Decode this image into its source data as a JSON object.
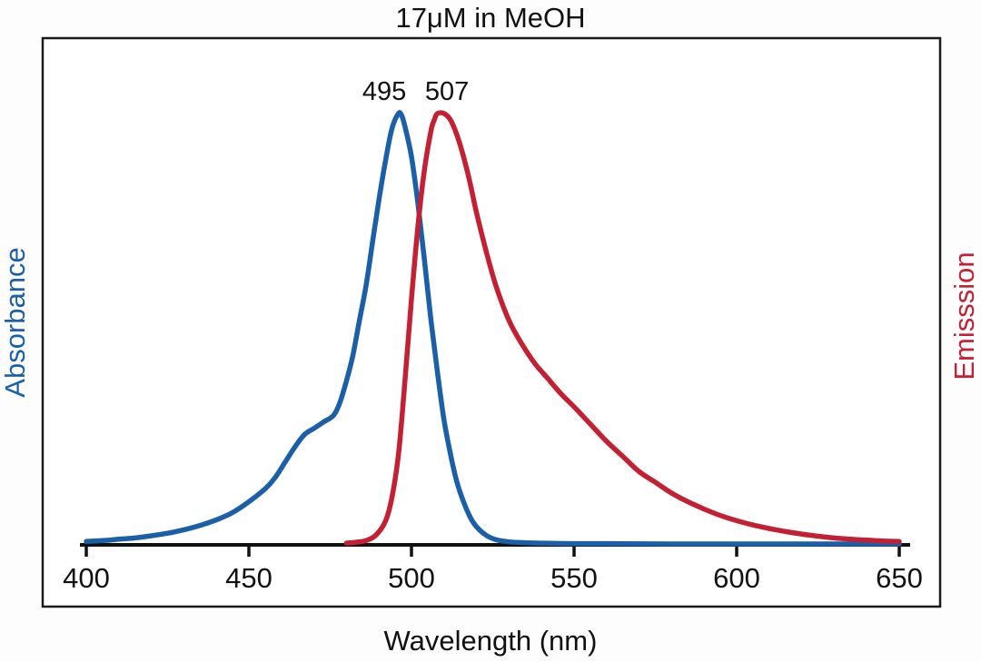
{
  "figure": {
    "title": "17μM in MeOH",
    "xlabel": "Wavelength (nm)",
    "ylabel_left": "Absorbance",
    "ylabel_right": "Emisssion"
  },
  "chart_data": {
    "type": "line",
    "title": "17μM in MeOH",
    "xlabel": "Wavelength (nm)",
    "ylabel_left": "Absorbance",
    "ylabel_right": "Emisssion",
    "x_range": [
      400,
      650
    ],
    "x_ticks": [
      400,
      450,
      500,
      550,
      600,
      650
    ],
    "y_range": [
      0,
      1
    ],
    "grid": false,
    "legend": "none",
    "annotations": [
      {
        "label": "495",
        "x": 495,
        "dx": -12
      },
      {
        "label": "507",
        "x": 507,
        "dx": 14
      }
    ],
    "series": [
      {
        "name": "Absorbance",
        "color": "#1a5fa8",
        "peak_nm": 495,
        "x": [
          400,
          405,
          410,
          415,
          420,
          425,
          430,
          435,
          440,
          445,
          450,
          455,
          458,
          461,
          464,
          467,
          470,
          473,
          476,
          478,
          480,
          482,
          484,
          486,
          488,
          490,
          492,
          494,
          496,
          497,
          498,
          500,
          502,
          504,
          506,
          508,
          510,
          512,
          514,
          516,
          518,
          520,
          523,
          526,
          530,
          535,
          540,
          550,
          560,
          580,
          600,
          625,
          650
        ],
        "y": [
          0.008,
          0.01,
          0.013,
          0.016,
          0.021,
          0.027,
          0.035,
          0.045,
          0.058,
          0.075,
          0.1,
          0.13,
          0.155,
          0.19,
          0.225,
          0.255,
          0.27,
          0.285,
          0.3,
          0.33,
          0.38,
          0.44,
          0.52,
          0.6,
          0.7,
          0.8,
          0.89,
          0.965,
          1.0,
          0.995,
          0.97,
          0.9,
          0.79,
          0.66,
          0.52,
          0.4,
          0.29,
          0.21,
          0.145,
          0.1,
          0.065,
          0.042,
          0.022,
          0.012,
          0.007,
          0.005,
          0.004,
          0.003,
          0.003,
          0.002,
          0.002,
          0.002,
          0.002
        ]
      },
      {
        "name": "Emisssion",
        "color": "#c42033",
        "peak_nm": 507,
        "x": [
          480,
          483,
          486,
          489,
          492,
          494,
          496,
          498,
          500,
          502,
          504,
          506,
          507,
          508,
          510,
          512,
          514,
          516,
          518,
          520,
          523,
          526,
          530,
          534,
          538,
          542,
          546,
          550,
          555,
          560,
          565,
          570,
          575,
          580,
          585,
          590,
          595,
          600,
          605,
          610,
          615,
          620,
          625,
          630,
          635,
          640,
          645,
          650
        ],
        "y": [
          0.004,
          0.006,
          0.01,
          0.022,
          0.055,
          0.11,
          0.21,
          0.38,
          0.57,
          0.74,
          0.87,
          0.96,
          0.985,
          1.0,
          1.0,
          0.985,
          0.95,
          0.9,
          0.84,
          0.77,
          0.68,
          0.6,
          0.52,
          0.465,
          0.42,
          0.385,
          0.35,
          0.32,
          0.28,
          0.24,
          0.205,
          0.17,
          0.145,
          0.12,
          0.1,
          0.083,
          0.068,
          0.056,
          0.046,
          0.038,
          0.031,
          0.025,
          0.02,
          0.016,
          0.013,
          0.011,
          0.009,
          0.008
        ]
      }
    ]
  }
}
